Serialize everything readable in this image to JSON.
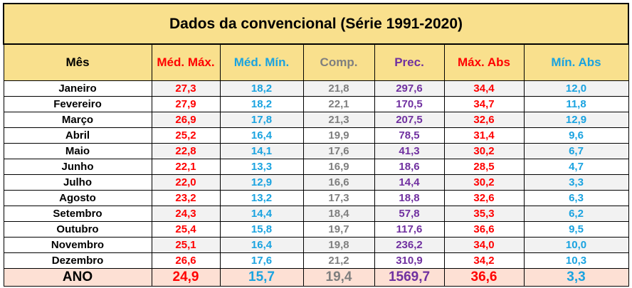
{
  "title": "Dados da convencional (Série 1991-2020)",
  "colors": {
    "header_bg": "#f9e08d",
    "year_bg": "#fde0d4",
    "red": "#ff0000",
    "blue": "#1aa3e0",
    "gray": "#7f7f7f",
    "purple": "#7030a0"
  },
  "headers": [
    "Mês",
    "Méd. Máx.",
    "Méd. Mín.",
    "Comp.",
    "Prec.",
    "Máx. Abs",
    "Mín. Abs"
  ],
  "rows": [
    {
      "month": "Janeiro",
      "med_max": "27,3",
      "med_min": "18,2",
      "comp": "21,8",
      "prec": "297,6",
      "max_abs": "34,4",
      "min_abs": "12,0"
    },
    {
      "month": "Fevereiro",
      "med_max": "27,9",
      "med_min": "18,2",
      "comp": "22,1",
      "prec": "170,5",
      "max_abs": "34,7",
      "min_abs": "11,8"
    },
    {
      "month": "Março",
      "med_max": "26,9",
      "med_min": "17,8",
      "comp": "21,3",
      "prec": "207,5",
      "max_abs": "32,6",
      "min_abs": "12,9"
    },
    {
      "month": "Abril",
      "med_max": "25,2",
      "med_min": "16,4",
      "comp": "19,9",
      "prec": "78,5",
      "max_abs": "31,4",
      "min_abs": "9,6"
    },
    {
      "month": "Maio",
      "med_max": "22,8",
      "med_min": "14,1",
      "comp": "17,6",
      "prec": "41,3",
      "max_abs": "30,2",
      "min_abs": "6,7"
    },
    {
      "month": "Junho",
      "med_max": "22,1",
      "med_min": "13,3",
      "comp": "16,9",
      "prec": "18,6",
      "max_abs": "28,5",
      "min_abs": "4,7"
    },
    {
      "month": "Julho",
      "med_max": "22,0",
      "med_min": "12,9",
      "comp": "16,6",
      "prec": "14,4",
      "max_abs": "30,2",
      "min_abs": "3,3"
    },
    {
      "month": "Agosto",
      "med_max": "23,2",
      "med_min": "13,2",
      "comp": "17,3",
      "prec": "18,8",
      "max_abs": "32,6",
      "min_abs": "6,3"
    },
    {
      "month": "Setembro",
      "med_max": "24,3",
      "med_min": "14,4",
      "comp": "18,4",
      "prec": "57,8",
      "max_abs": "35,3",
      "min_abs": "6,2"
    },
    {
      "month": "Outubro",
      "med_max": "25,4",
      "med_min": "15,8",
      "comp": "19,7",
      "prec": "117,6",
      "max_abs": "36,6",
      "min_abs": "9,5"
    },
    {
      "month": "Novembro",
      "med_max": "25,1",
      "med_min": "16,4",
      "comp": "19,8",
      "prec": "236,2",
      "max_abs": "34,0",
      "min_abs": "10,0"
    },
    {
      "month": "Dezembro",
      "med_max": "26,6",
      "med_min": "17,6",
      "comp": "21,2",
      "prec": "310,9",
      "max_abs": "34,2",
      "min_abs": "10,3"
    }
  ],
  "year": {
    "month": "ANO",
    "med_max": "24,9",
    "med_min": "15,7",
    "comp": "19,4",
    "prec": "1569,7",
    "max_abs": "36,6",
    "min_abs": "3,3"
  }
}
